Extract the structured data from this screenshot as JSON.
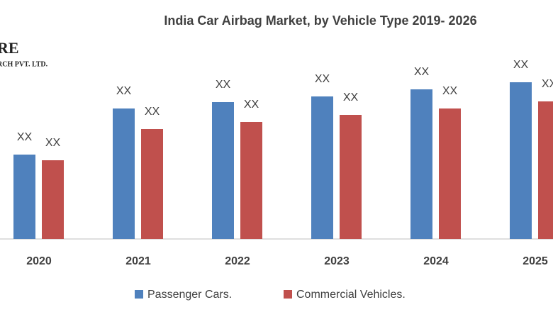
{
  "logo": {
    "line1": "RE",
    "line2": "RCH PVT. LTD."
  },
  "chart_data": {
    "type": "bar",
    "title": "India Car Airbag Market, by Vehicle Type 2019- 2026",
    "categories": [
      "2020",
      "2021",
      "2022",
      "2023",
      "2024",
      "2025"
    ],
    "series": [
      {
        "name": "Passenger Cars.",
        "color": "#4f81bd",
        "values": [
          119,
          184,
          193,
          201,
          211,
          221
        ],
        "value_labels": [
          "XX",
          "XX",
          "XX",
          "XX",
          "XX",
          "XX"
        ]
      },
      {
        "name": "Commercial Vehicles.",
        "color": "#c0504d",
        "values": [
          111,
          155,
          165,
          175,
          184,
          194
        ],
        "value_labels": [
          "XX",
          "XX",
          "XX",
          "XX",
          "XX",
          "XX"
        ]
      }
    ],
    "ylim": [
      0,
      260
    ]
  }
}
